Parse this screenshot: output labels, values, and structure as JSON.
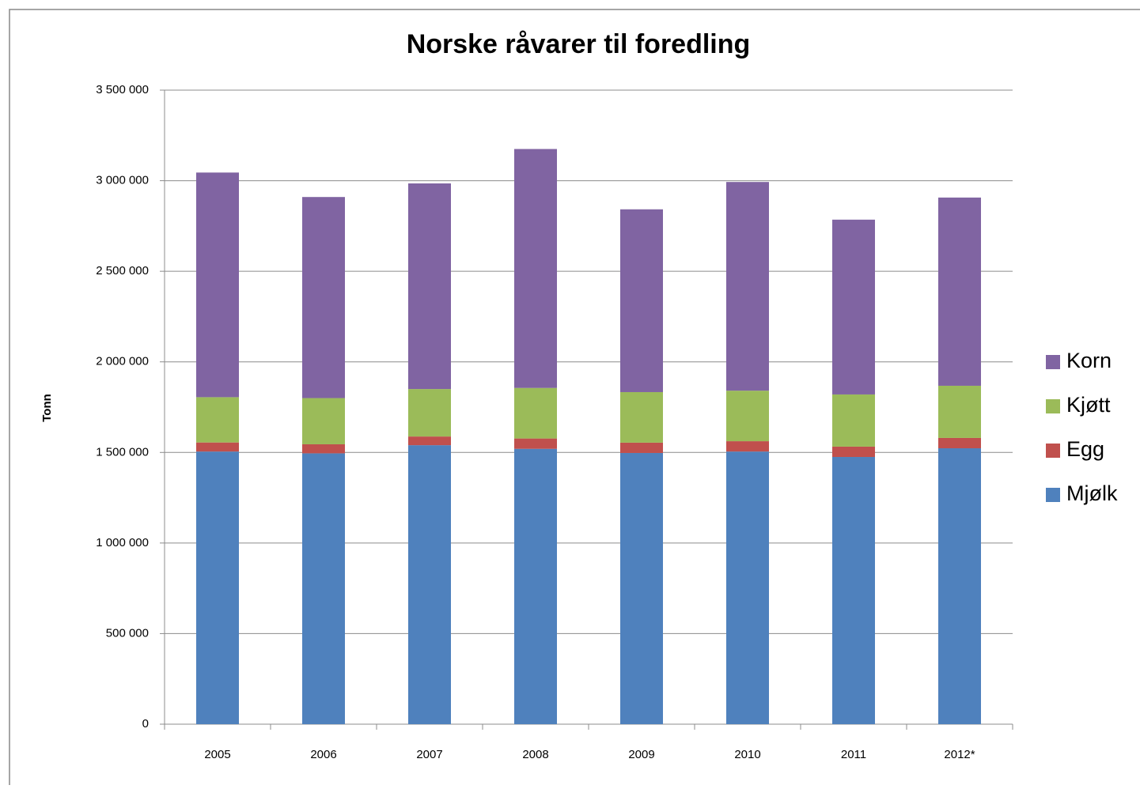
{
  "chart_data": {
    "type": "stacked_bar",
    "title": "Norske råvarer til foredling",
    "y_label": "Tonn",
    "categories": [
      "2005",
      "2006",
      "2007",
      "2008",
      "2009",
      "2010",
      "2011",
      "2012*"
    ],
    "series": [
      {
        "name": "Mjølk",
        "color": "#4f81bd",
        "values": [
          1505000,
          1495000,
          1540000,
          1520000,
          1497000,
          1505000,
          1475000,
          1523000
        ]
      },
      {
        "name": "Egg",
        "color": "#c0504d",
        "values": [
          50000,
          50000,
          48000,
          57000,
          57000,
          57000,
          57000,
          57000
        ]
      },
      {
        "name": "Kjøtt",
        "color": "#9bbb59",
        "values": [
          250000,
          255000,
          262000,
          279000,
          279000,
          279000,
          288000,
          288000
        ]
      },
      {
        "name": "Korn",
        "color": "#8064a2",
        "values": [
          1240000,
          1110000,
          1135000,
          1319000,
          1009000,
          1152000,
          965000,
          1039000
        ]
      }
    ],
    "ylim": [
      0,
      3500000
    ],
    "yticks": [
      0,
      {
        "value": 500000,
        "label": "500 000"
      },
      {
        "value": 1000000,
        "label": "1 000 000"
      },
      {
        "value": 1500000,
        "label": "1 500 000"
      },
      {
        "value": 2000000,
        "label": "2 000 000"
      },
      {
        "value": 2500000,
        "label": "2 500 000"
      },
      {
        "value": 3000000,
        "label": "3 000 000"
      },
      {
        "value": 3500000,
        "label": "3 500 000"
      }
    ],
    "grid": true,
    "legend": "right"
  }
}
